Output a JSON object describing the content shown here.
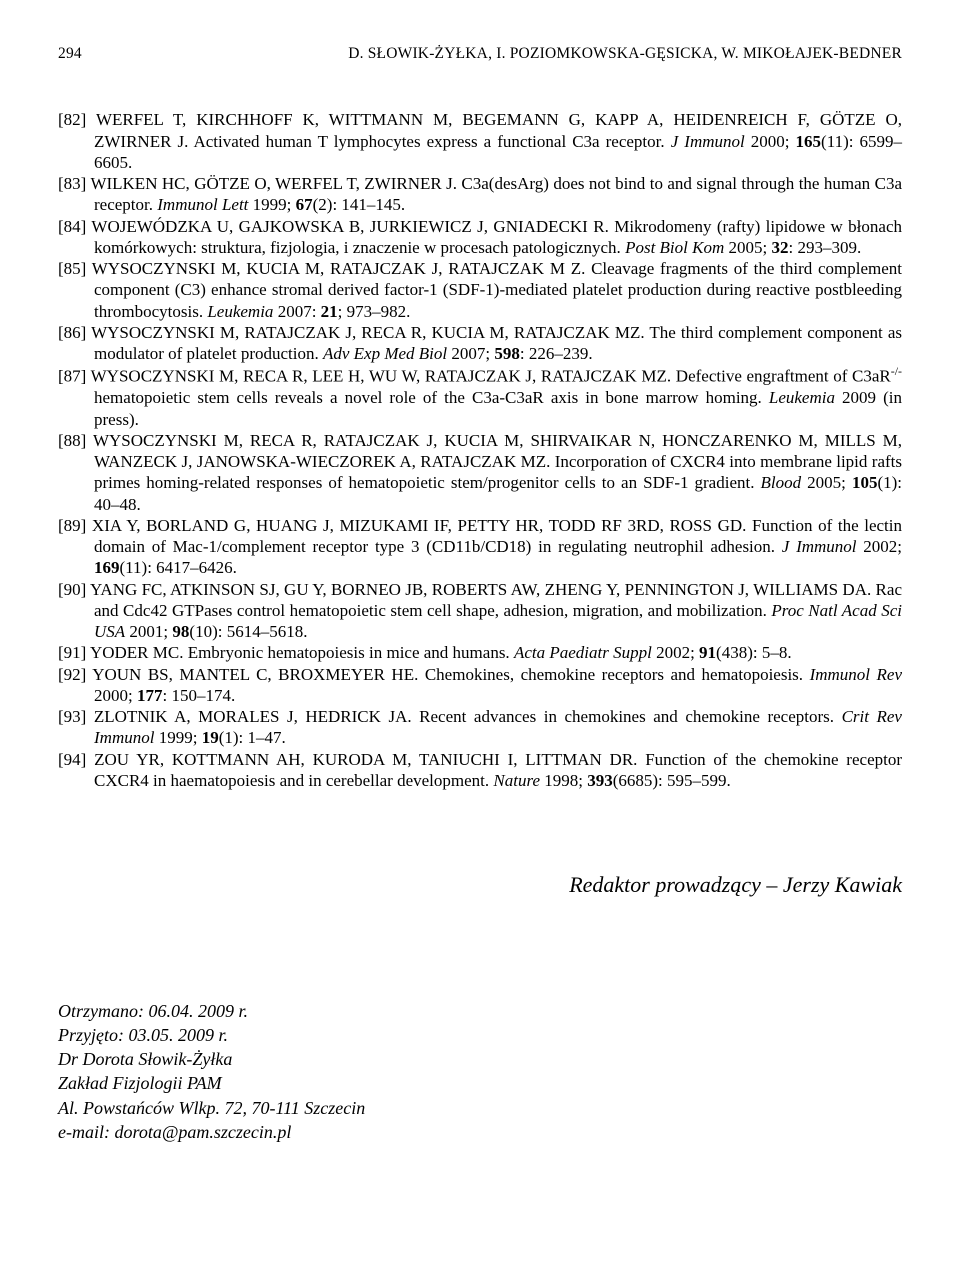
{
  "header": {
    "page_number": "294",
    "running_head": "D. SŁOWIK-ŻYŁKA, I. POZIOMKOWSKA-GĘSICKA, W. MIKOŁAJEK-BEDNER"
  },
  "references": [
    {
      "num": "[82]",
      "text": "WERFEL T, KIRCHHOFF K, WITTMANN M, BEGEMANN G, KAPP A, HEIDENREICH F, GÖTZE O, ZWIRNER J. Activated human T lymphocytes express a functional C3a receptor. ",
      "journal": "J Immunol",
      "tail": " 2000; ",
      "bold": "165",
      "after": "(11): 6599–6605."
    },
    {
      "num": "[83]",
      "text": "WILKEN HC, GÖTZE O, WERFEL T, ZWIRNER J. C3a(desArg) does not bind to and signal through the human C3a receptor. ",
      "journal": "Immunol Lett",
      "tail": " 1999; ",
      "bold": "67",
      "after": "(2): 141–145."
    },
    {
      "num": "[84]",
      "text": "WOJEWÓDZKA U, GAJKOWSKA B, JURKIEWICZ J, GNIADECKI R. Mikrodomeny (rafty) lipidowe w błonach komórkowych: struktura, fizjologia, i znaczenie w procesach patologicznych. ",
      "journal": "Post Biol Kom",
      "tail": " 2005; ",
      "bold": "32",
      "after": ": 293–309."
    },
    {
      "num": "[85]",
      "text": "WYSOCZYNSKI M, KUCIA M, RATAJCZAK J, RATAJCZAK M Z. Cleavage fragments of the third complement component (C3) enhance stromal derived factor-1 (SDF-1)-mediated platelet production during reactive postbleeding thrombocytosis. ",
      "journal": "Leukemia",
      "tail": " 2007: ",
      "bold": "21",
      "after": "; 973–982."
    },
    {
      "num": "[86]",
      "text": "WYSOCZYNSKI M, RATAJCZAK J, RECA R, KUCIA M, RATAJCZAK MZ. The third complement component as modulator of platelet production. ",
      "journal": "Adv Exp Med Biol",
      "tail": " 2007; ",
      "bold": "598",
      "after": ": 226–239."
    },
    {
      "num": "[87]",
      "pre": "WYSOCZYNSKI M, RECA R, LEE H, WU W, RATAJCZAK J, RATAJCZAK MZ. Defective engraftment of C3aR",
      "sup": "-/-",
      "post": " hematopoietic stem cells reveals a novel role of the C3a-C3aR axis in bone marrow homing. ",
      "journal": "Leukemia",
      "tail": " 2009 (in press).",
      "bold": "",
      "after": ""
    },
    {
      "num": "[88]",
      "text": "WYSOCZYNSKI M, RECA R, RATAJCZAK J, KUCIA M, SHIRVAIKAR N, HONCZARENKO M, MILLS M, WANZECK J, JANOWSKA-WIECZOREK A, RATAJCZAK MZ. Incorporation of CXCR4 into membrane lipid rafts primes homing-related responses of hematopoietic stem/progenitor cells to an SDF-1 gradient. ",
      "journal": "Blood",
      "tail": " 2005; ",
      "bold": "105",
      "after": "(1): 40–48."
    },
    {
      "num": "[89]",
      "text": "XIA Y, BORLAND G, HUANG J, MIZUKAMI IF, PETTY HR, TODD RF 3RD, ROSS GD. Function of the lectin domain of Mac-1/complement receptor type 3 (CD11b/CD18) in regulating neutrophil adhesion. ",
      "journal": "J Immunol",
      "tail": " 2002; ",
      "bold": "169",
      "after": "(11): 6417–6426."
    },
    {
      "num": "[90]",
      "text": "YANG FC, ATKINSON SJ, GU Y, BORNEO JB, ROBERTS AW, ZHENG Y, PENNINGTON J, WILLIAMS DA. Rac and Cdc42 GTPases control hematopoietic stem cell shape, adhesion, migration, and mobilization. ",
      "journal": "Proc Natl Acad Sci USA",
      "tail": " 2001; ",
      "bold": "98",
      "after": "(10): 5614–5618."
    },
    {
      "num": "[91]",
      "text": "YODER MC. Embryonic hematopoiesis in mice and humans. ",
      "journal": "Acta Paediatr Suppl",
      "tail": " 2002; ",
      "bold": "91",
      "after": "(438): 5–8."
    },
    {
      "num": "[92]",
      "text": "YOUN BS, MANTEL C, BROXMEYER HE. Chemokines, chemokine receptors and hematopoiesis. ",
      "journal": "Immunol Rev",
      "tail": " 2000; ",
      "bold": "177",
      "after": ": 150–174."
    },
    {
      "num": "[93]",
      "text": "ZLOTNIK A, MORALES J, HEDRICK JA. Recent advances in chemokines and chemokine receptors. ",
      "journal": "Crit Rev Immunol",
      "tail": " 1999; ",
      "bold": "19",
      "after": "(1): 1–47."
    },
    {
      "num": "[94]",
      "text": "ZOU YR, KOTTMANN AH, KURODA M, TANIUCHI I, LITTMAN DR. Function of the chemokine receptor CXCR4 in haematopoiesis and in cerebellar development. ",
      "journal": "Nature",
      "tail": " 1998; ",
      "bold": "393",
      "after": "(6685): 595–599."
    }
  ],
  "editor_line": "Redaktor prowadzący – Jerzy Kawiak",
  "footer": {
    "received": "Otrzymano: 06.04. 2009 r.",
    "accepted": "Przyjęto: 03.05. 2009 r.",
    "author": "Dr Dorota Słowik-Żyłka",
    "dept": "Zakład Fizjologii PAM",
    "address": "Al. Powstańców Wlkp. 72, 70-111 Szczecin",
    "email": "e-mail: dorota@pam.szczecin.pl"
  }
}
